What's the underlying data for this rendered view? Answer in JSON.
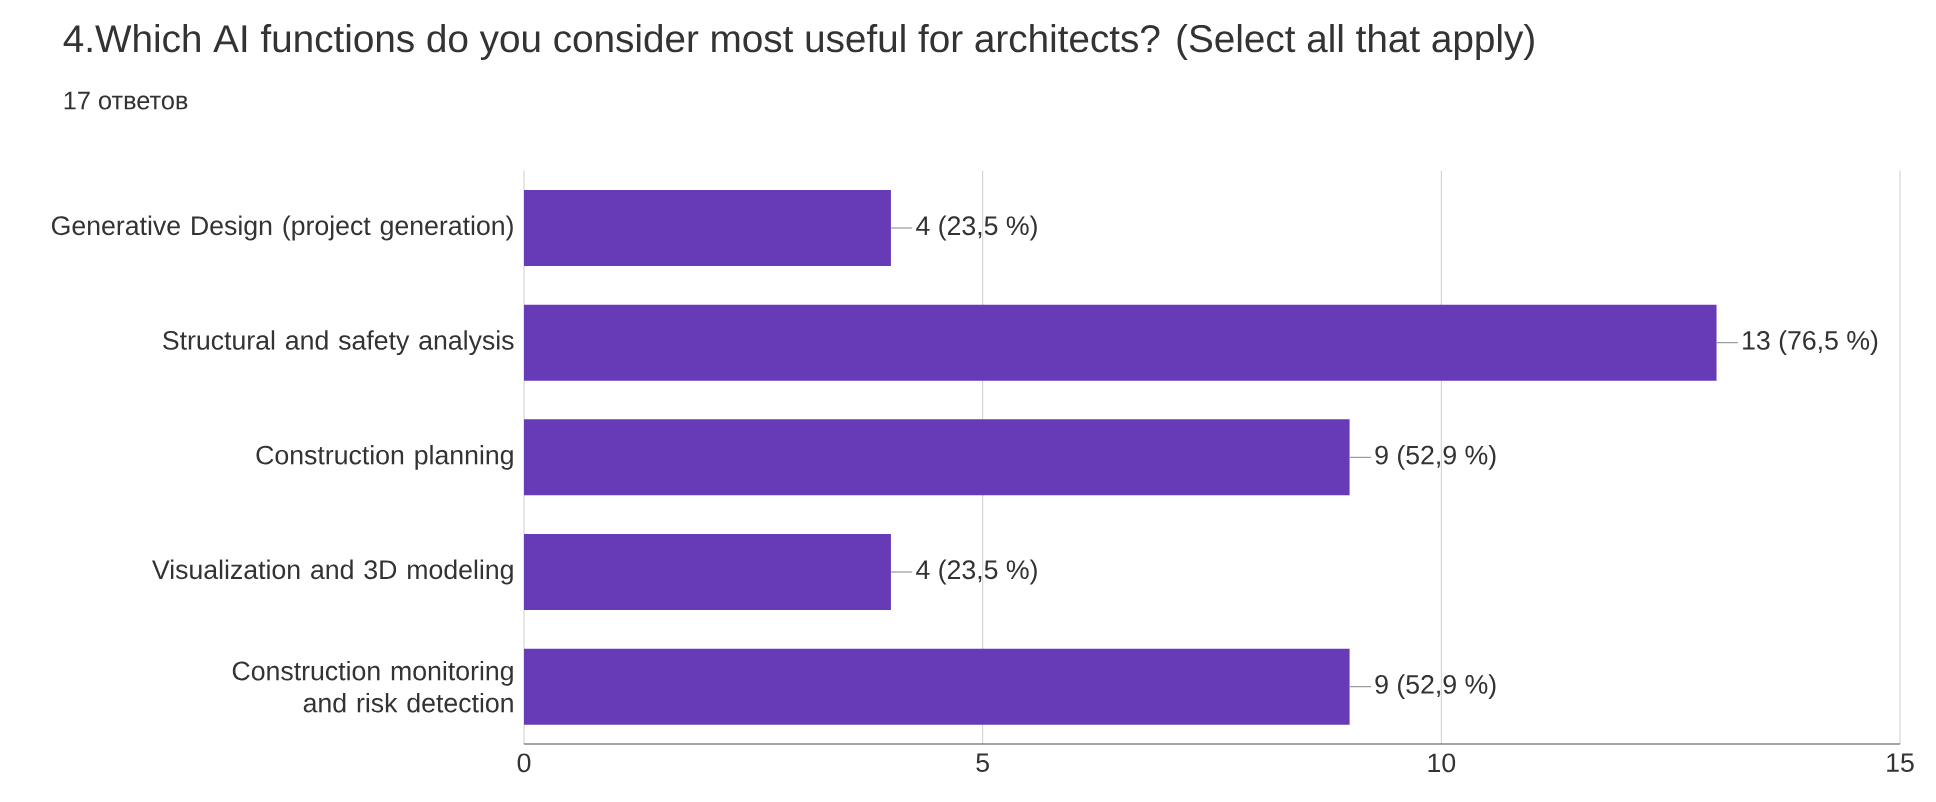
{
  "chart_data": {
    "type": "bar",
    "orientation": "horizontal",
    "title": "4.Which AI functions do you consider most useful for architects? (Select all that apply)",
    "subtitle": "17 ответов",
    "categories": [
      "Generative Design (project generation)",
      "Structural and safety analysis",
      "Construction planning",
      "Visualization and 3D modeling",
      "Construction monitoring and risk detection"
    ],
    "values": [
      4,
      13,
      9,
      4,
      9
    ],
    "value_labels": [
      "4 (23,5 %)",
      "13 (76,5 %)",
      "9 (52,9 %)",
      "4 (23,5 %)",
      "9 (52,9 %)"
    ],
    "color": "#673ab7",
    "xlim": [
      0,
      15
    ],
    "xticks": [
      0,
      5,
      10,
      15
    ],
    "grid": "x"
  }
}
